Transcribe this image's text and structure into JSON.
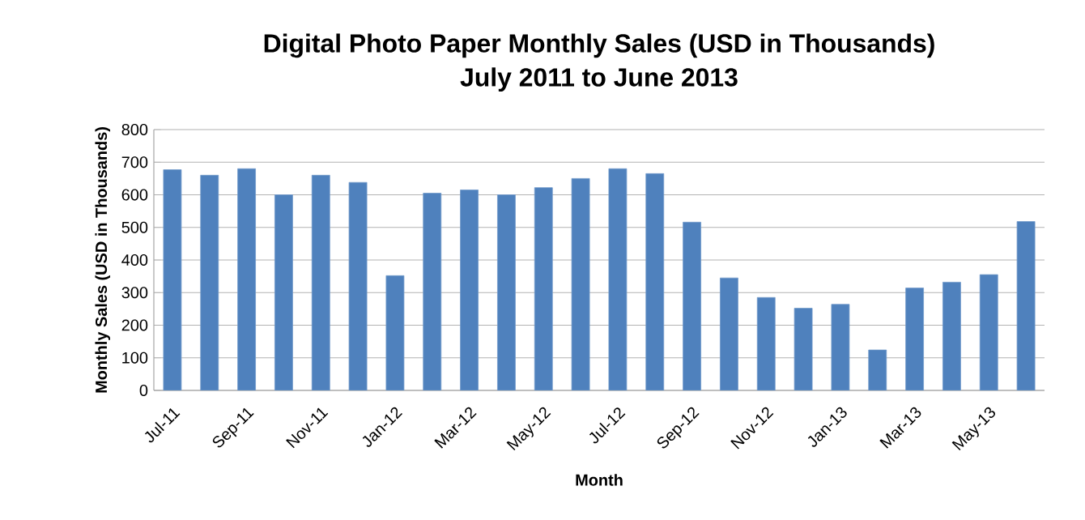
{
  "chart_data": {
    "type": "bar",
    "title": "Digital Photo Paper Monthly Sales (USD in Thousands)",
    "subtitle": "July 2011 to June 2013",
    "xlabel": "Month",
    "ylabel": "Monthly Sales (USD in Thousands)",
    "categories": [
      "Jul-11",
      null,
      "Sep-11",
      null,
      "Nov-11",
      null,
      "Jan-12",
      null,
      "Mar-12",
      null,
      "May-12",
      null,
      "Jul-12",
      null,
      "Sep-12",
      null,
      "Nov-12",
      null,
      "Jan-13",
      null,
      "Mar-13",
      null,
      "May-13",
      null
    ],
    "values": [
      677,
      660,
      680,
      600,
      660,
      638,
      352,
      605,
      615,
      600,
      622,
      650,
      680,
      665,
      516,
      345,
      285,
      252,
      264,
      124,
      314,
      332,
      355,
      518
    ],
    "color": "#4f81bd",
    "ylim": [
      0,
      800
    ],
    "yticks": [
      0,
      100,
      200,
      300,
      400,
      500,
      600,
      700,
      800
    ],
    "grid": "y"
  }
}
